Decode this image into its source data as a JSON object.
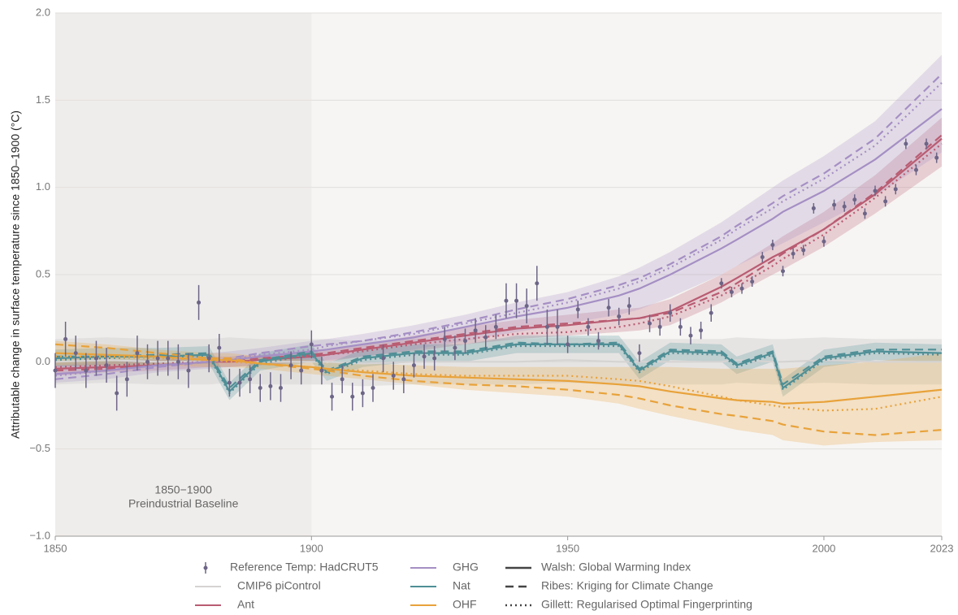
{
  "chart_data": {
    "type": "line",
    "ylabel": "Attributable change in surface temperature since 1850–1900 (°C)",
    "xlim": [
      1850,
      2023
    ],
    "xticks": [
      1850,
      1900,
      1950,
      2000,
      2023
    ],
    "ylim": [
      -1,
      2
    ],
    "yticks": [
      {
        "value": -1,
        "label": "−1.0"
      },
      {
        "value": -0.5,
        "label": "−0.5"
      },
      {
        "value": 0,
        "label": "0.0"
      },
      0.5,
      {
        "value": 1,
        "label": "1.0"
      },
      1.5,
      {
        "value": 2,
        "label": "2.0"
      }
    ],
    "grid": true,
    "shaded_region": {
      "xlim": [
        1850,
        1900
      ],
      "color": "#efedeb",
      "labels": [
        "1850−1900",
        "Preindustrial Baseline"
      ]
    },
    "line_styles": [
      {
        "name": "Walsh: Global Warming Index",
        "dash": "solid"
      },
      {
        "name": "Ribes: Kriging for Climate Change",
        "dash": "dashed"
      },
      {
        "name": "Gillett: Regularised Optimal Fingerprinting",
        "dash": "dotted"
      }
    ],
    "reference": {
      "name": "Reference Temp: HadCRUT5",
      "color": "#6d6587",
      "x": [
        1850,
        1852,
        1854,
        1856,
        1858,
        1860,
        1862,
        1864,
        1866,
        1868,
        1870,
        1872,
        1874,
        1876,
        1878,
        1880,
        1882,
        1884,
        1886,
        1888,
        1890,
        1892,
        1894,
        1896,
        1898,
        1900,
        1902,
        1904,
        1906,
        1908,
        1910,
        1912,
        1914,
        1916,
        1918,
        1920,
        1922,
        1924,
        1926,
        1928,
        1930,
        1932,
        1934,
        1936,
        1938,
        1940,
        1942,
        1944,
        1946,
        1948,
        1950,
        1952,
        1954,
        1956,
        1958,
        1960,
        1962,
        1964,
        1966,
        1968,
        1970,
        1972,
        1974,
        1976,
        1978,
        1980,
        1982,
        1984,
        1986,
        1988,
        1990,
        1992,
        1994,
        1996,
        1998,
        2000,
        2002,
        2004,
        2006,
        2008,
        2010,
        2012,
        2014,
        2016,
        2018,
        2020,
        2022
      ],
      "values": [
        -0.05,
        0.13,
        0.05,
        -0.05,
        0.02,
        -0.02,
        -0.18,
        -0.1,
        0.05,
        0.0,
        0.02,
        0.02,
        0.0,
        -0.05,
        0.34,
        0.02,
        0.08,
        -0.12,
        -0.12,
        -0.1,
        -0.15,
        -0.14,
        -0.15,
        -0.02,
        -0.05,
        0.1,
        -0.05,
        -0.2,
        -0.1,
        -0.2,
        -0.18,
        -0.15,
        0.02,
        -0.08,
        -0.1,
        -0.02,
        0.03,
        0.02,
        0.13,
        0.08,
        0.12,
        0.18,
        0.14,
        0.2,
        0.35,
        0.35,
        0.32,
        0.45,
        0.2,
        0.2,
        0.1,
        0.3,
        0.2,
        0.12,
        0.31,
        0.26,
        0.32,
        0.05,
        0.22,
        0.2,
        0.28,
        0.2,
        0.15,
        0.18,
        0.28,
        0.45,
        0.4,
        0.42,
        0.46,
        0.6,
        0.67,
        0.52,
        0.62,
        0.64,
        0.88,
        0.69,
        0.9,
        0.89,
        0.93,
        0.85,
        0.98,
        0.92,
        0.99,
        1.25,
        1.1,
        1.25,
        1.17
      ],
      "errors": [
        0.1,
        0.1,
        0.1,
        0.1,
        0.1,
        0.1,
        0.1,
        0.1,
        0.1,
        0.1,
        0.1,
        0.1,
        0.1,
        0.1,
        0.1,
        0.08,
        0.08,
        0.08,
        0.08,
        0.08,
        0.08,
        0.08,
        0.08,
        0.08,
        0.08,
        0.08,
        0.08,
        0.08,
        0.08,
        0.08,
        0.08,
        0.08,
        0.08,
        0.08,
        0.08,
        0.07,
        0.07,
        0.07,
        0.07,
        0.07,
        0.07,
        0.07,
        0.07,
        0.07,
        0.1,
        0.1,
        0.1,
        0.1,
        0.1,
        0.1,
        0.05,
        0.05,
        0.05,
        0.05,
        0.05,
        0.05,
        0.05,
        0.05,
        0.05,
        0.05,
        0.05,
        0.05,
        0.05,
        0.05,
        0.05,
        0.03,
        0.03,
        0.03,
        0.03,
        0.03,
        0.03,
        0.03,
        0.03,
        0.03,
        0.03,
        0.03,
        0.03,
        0.03,
        0.03,
        0.03,
        0.03,
        0.03,
        0.03,
        0.03,
        0.03,
        0.03,
        0.03
      ]
    },
    "x": [
      1850,
      1860,
      1870,
      1880,
      1884,
      1890,
      1900,
      1903,
      1910,
      1920,
      1930,
      1940,
      1950,
      1960,
      1964,
      1970,
      1980,
      1983,
      1990,
      1992,
      2000,
      2010,
      2023
    ],
    "series": [
      {
        "name": "CMIP6 piControl",
        "color": "#d6d3d3",
        "lines": [
          [
            0.0,
            0.01,
            0.0,
            0.0,
            0.01,
            0.0,
            0.0,
            0.0,
            -0.01,
            0.0,
            0.0,
            0.0,
            0.01,
            0.0,
            0.0,
            0.0,
            0.0,
            0.01,
            0.0,
            0.0,
            0.01,
            0.0,
            0.0
          ]
        ],
        "band_low": [
          -0.13,
          -0.12,
          -0.13,
          -0.13,
          -0.12,
          -0.13,
          -0.13,
          -0.13,
          -0.14,
          -0.13,
          -0.13,
          -0.13,
          -0.12,
          -0.13,
          -0.13,
          -0.13,
          -0.13,
          -0.12,
          -0.13,
          -0.13,
          -0.12,
          -0.13,
          -0.13
        ],
        "band_high": [
          0.13,
          0.14,
          0.13,
          0.13,
          0.14,
          0.13,
          0.13,
          0.13,
          0.12,
          0.13,
          0.13,
          0.13,
          0.14,
          0.13,
          0.13,
          0.13,
          0.13,
          0.14,
          0.13,
          0.13,
          0.14,
          0.13,
          0.13
        ]
      },
      {
        "name": "Ant",
        "color": "#b95c72",
        "lines": [
          [
            -0.04,
            -0.03,
            -0.02,
            0.0,
            0.0,
            0.01,
            0.03,
            0.04,
            0.07,
            0.11,
            0.15,
            0.19,
            0.21,
            0.24,
            0.25,
            0.29,
            0.43,
            0.48,
            0.6,
            0.63,
            0.76,
            0.96,
            1.28
          ],
          [
            -0.05,
            -0.04,
            -0.02,
            0.0,
            0.01,
            0.02,
            0.04,
            0.05,
            0.08,
            0.12,
            0.16,
            0.2,
            0.22,
            0.24,
            0.25,
            0.28,
            0.4,
            0.45,
            0.58,
            0.62,
            0.76,
            0.97,
            1.3
          ],
          [
            -0.03,
            -0.02,
            -0.01,
            0.0,
            0.0,
            0.01,
            0.03,
            0.04,
            0.06,
            0.1,
            0.13,
            0.16,
            0.17,
            0.2,
            0.22,
            0.26,
            0.38,
            0.43,
            0.55,
            0.59,
            0.73,
            0.94,
            1.25
          ]
        ],
        "band_low": [
          -0.08,
          -0.06,
          -0.05,
          -0.03,
          -0.03,
          -0.02,
          0.0,
          0.0,
          0.03,
          0.06,
          0.1,
          0.13,
          0.15,
          0.17,
          0.18,
          0.21,
          0.34,
          0.39,
          0.5,
          0.53,
          0.66,
          0.85,
          1.12
        ],
        "band_high": [
          0.0,
          0.0,
          0.01,
          0.03,
          0.03,
          0.04,
          0.06,
          0.07,
          0.1,
          0.15,
          0.2,
          0.24,
          0.27,
          0.3,
          0.31,
          0.36,
          0.5,
          0.55,
          0.68,
          0.72,
          0.86,
          1.07,
          1.4
        ]
      },
      {
        "name": "GHG",
        "color": "#a58fc4",
        "lines": [
          [
            -0.07,
            -0.05,
            -0.02,
            0.0,
            0.01,
            0.03,
            0.06,
            0.07,
            0.1,
            0.14,
            0.2,
            0.26,
            0.31,
            0.38,
            0.42,
            0.5,
            0.65,
            0.7,
            0.82,
            0.86,
            0.98,
            1.16,
            1.45
          ],
          [
            -0.1,
            -0.07,
            -0.03,
            0.0,
            0.02,
            0.05,
            0.09,
            0.1,
            0.12,
            0.17,
            0.23,
            0.3,
            0.36,
            0.44,
            0.48,
            0.56,
            0.72,
            0.78,
            0.91,
            0.95,
            1.08,
            1.28,
            1.65
          ],
          [
            -0.08,
            -0.05,
            -0.02,
            0.0,
            0.01,
            0.04,
            0.07,
            0.09,
            0.12,
            0.16,
            0.22,
            0.28,
            0.34,
            0.42,
            0.46,
            0.54,
            0.7,
            0.76,
            0.88,
            0.92,
            1.05,
            1.24,
            1.6
          ]
        ],
        "band_low": [
          -0.12,
          -0.1,
          -0.06,
          -0.04,
          -0.03,
          -0.02,
          0.0,
          0.01,
          0.03,
          0.07,
          0.12,
          0.17,
          0.22,
          0.27,
          0.3,
          0.37,
          0.5,
          0.55,
          0.65,
          0.68,
          0.8,
          0.95,
          1.2
        ],
        "band_high": [
          -0.02,
          0.0,
          0.02,
          0.05,
          0.06,
          0.08,
          0.12,
          0.13,
          0.16,
          0.21,
          0.27,
          0.34,
          0.4,
          0.49,
          0.54,
          0.63,
          0.8,
          0.86,
          1.0,
          1.04,
          1.18,
          1.38,
          1.76
        ]
      },
      {
        "name": "Nat",
        "color": "#4f8f96",
        "lines": [
          [
            0.02,
            0.03,
            0.03,
            0.04,
            -0.17,
            0.0,
            0.05,
            -0.06,
            0.02,
            0.05,
            0.05,
            0.1,
            0.1,
            0.1,
            -0.05,
            0.06,
            0.05,
            -0.02,
            0.05,
            -0.15,
            0.02,
            0.06,
            0.05
          ],
          [
            0.03,
            0.03,
            0.04,
            0.05,
            -0.15,
            0.01,
            0.06,
            -0.05,
            0.03,
            0.06,
            0.06,
            0.11,
            0.1,
            0.11,
            -0.04,
            0.07,
            0.06,
            -0.01,
            0.06,
            -0.13,
            0.03,
            0.07,
            0.07
          ],
          [
            0.01,
            0.02,
            0.03,
            0.03,
            -0.18,
            -0.01,
            0.04,
            -0.07,
            0.01,
            0.04,
            0.04,
            0.09,
            0.09,
            0.09,
            -0.06,
            0.05,
            0.04,
            -0.03,
            0.04,
            -0.16,
            0.01,
            0.05,
            0.04
          ]
        ],
        "band_low": [
          -0.03,
          -0.02,
          -0.02,
          -0.01,
          -0.22,
          -0.05,
          0.0,
          -0.11,
          -0.03,
          0.0,
          0.0,
          0.05,
          0.05,
          0.05,
          -0.1,
          0.01,
          0.0,
          -0.07,
          0.0,
          -0.2,
          -0.03,
          0.01,
          0.0
        ],
        "band_high": [
          0.07,
          0.08,
          0.08,
          0.09,
          -0.12,
          0.05,
          0.1,
          -0.01,
          0.07,
          0.1,
          0.1,
          0.15,
          0.15,
          0.15,
          0.0,
          0.11,
          0.1,
          0.03,
          0.1,
          -0.1,
          0.07,
          0.11,
          0.1
        ]
      },
      {
        "name": "OHF",
        "color": "#e8a23a",
        "lines": [
          [
            0.05,
            0.04,
            0.03,
            0.01,
            0.01,
            -0.01,
            -0.03,
            -0.04,
            -0.06,
            -0.08,
            -0.09,
            -0.1,
            -0.11,
            -0.13,
            -0.14,
            -0.17,
            -0.21,
            -0.22,
            -0.23,
            -0.24,
            -0.23,
            -0.2,
            -0.16
          ],
          [
            0.1,
            0.08,
            0.05,
            0.02,
            0.02,
            -0.01,
            -0.04,
            -0.05,
            -0.08,
            -0.11,
            -0.13,
            -0.14,
            -0.16,
            -0.19,
            -0.21,
            -0.25,
            -0.3,
            -0.31,
            -0.34,
            -0.36,
            -0.4,
            -0.42,
            -0.39
          ],
          [
            0.03,
            0.03,
            0.02,
            0.01,
            0.0,
            -0.01,
            -0.03,
            -0.04,
            -0.05,
            -0.07,
            -0.08,
            -0.08,
            -0.08,
            -0.1,
            -0.11,
            -0.14,
            -0.2,
            -0.22,
            -0.25,
            -0.26,
            -0.28,
            -0.27,
            -0.2
          ]
        ],
        "band_low": [
          -0.02,
          -0.02,
          -0.02,
          -0.03,
          -0.03,
          -0.04,
          -0.07,
          -0.08,
          -0.1,
          -0.13,
          -0.16,
          -0.18,
          -0.2,
          -0.24,
          -0.27,
          -0.31,
          -0.37,
          -0.39,
          -0.42,
          -0.45,
          -0.48,
          -0.46,
          -0.45
        ],
        "band_high": [
          0.12,
          0.1,
          0.07,
          0.05,
          0.05,
          0.03,
          0.01,
          0.0,
          -0.01,
          -0.02,
          -0.03,
          -0.03,
          -0.03,
          -0.03,
          -0.03,
          -0.03,
          -0.04,
          -0.04,
          -0.04,
          -0.04,
          -0.02,
          0.0,
          0.05
        ]
      }
    ]
  }
}
